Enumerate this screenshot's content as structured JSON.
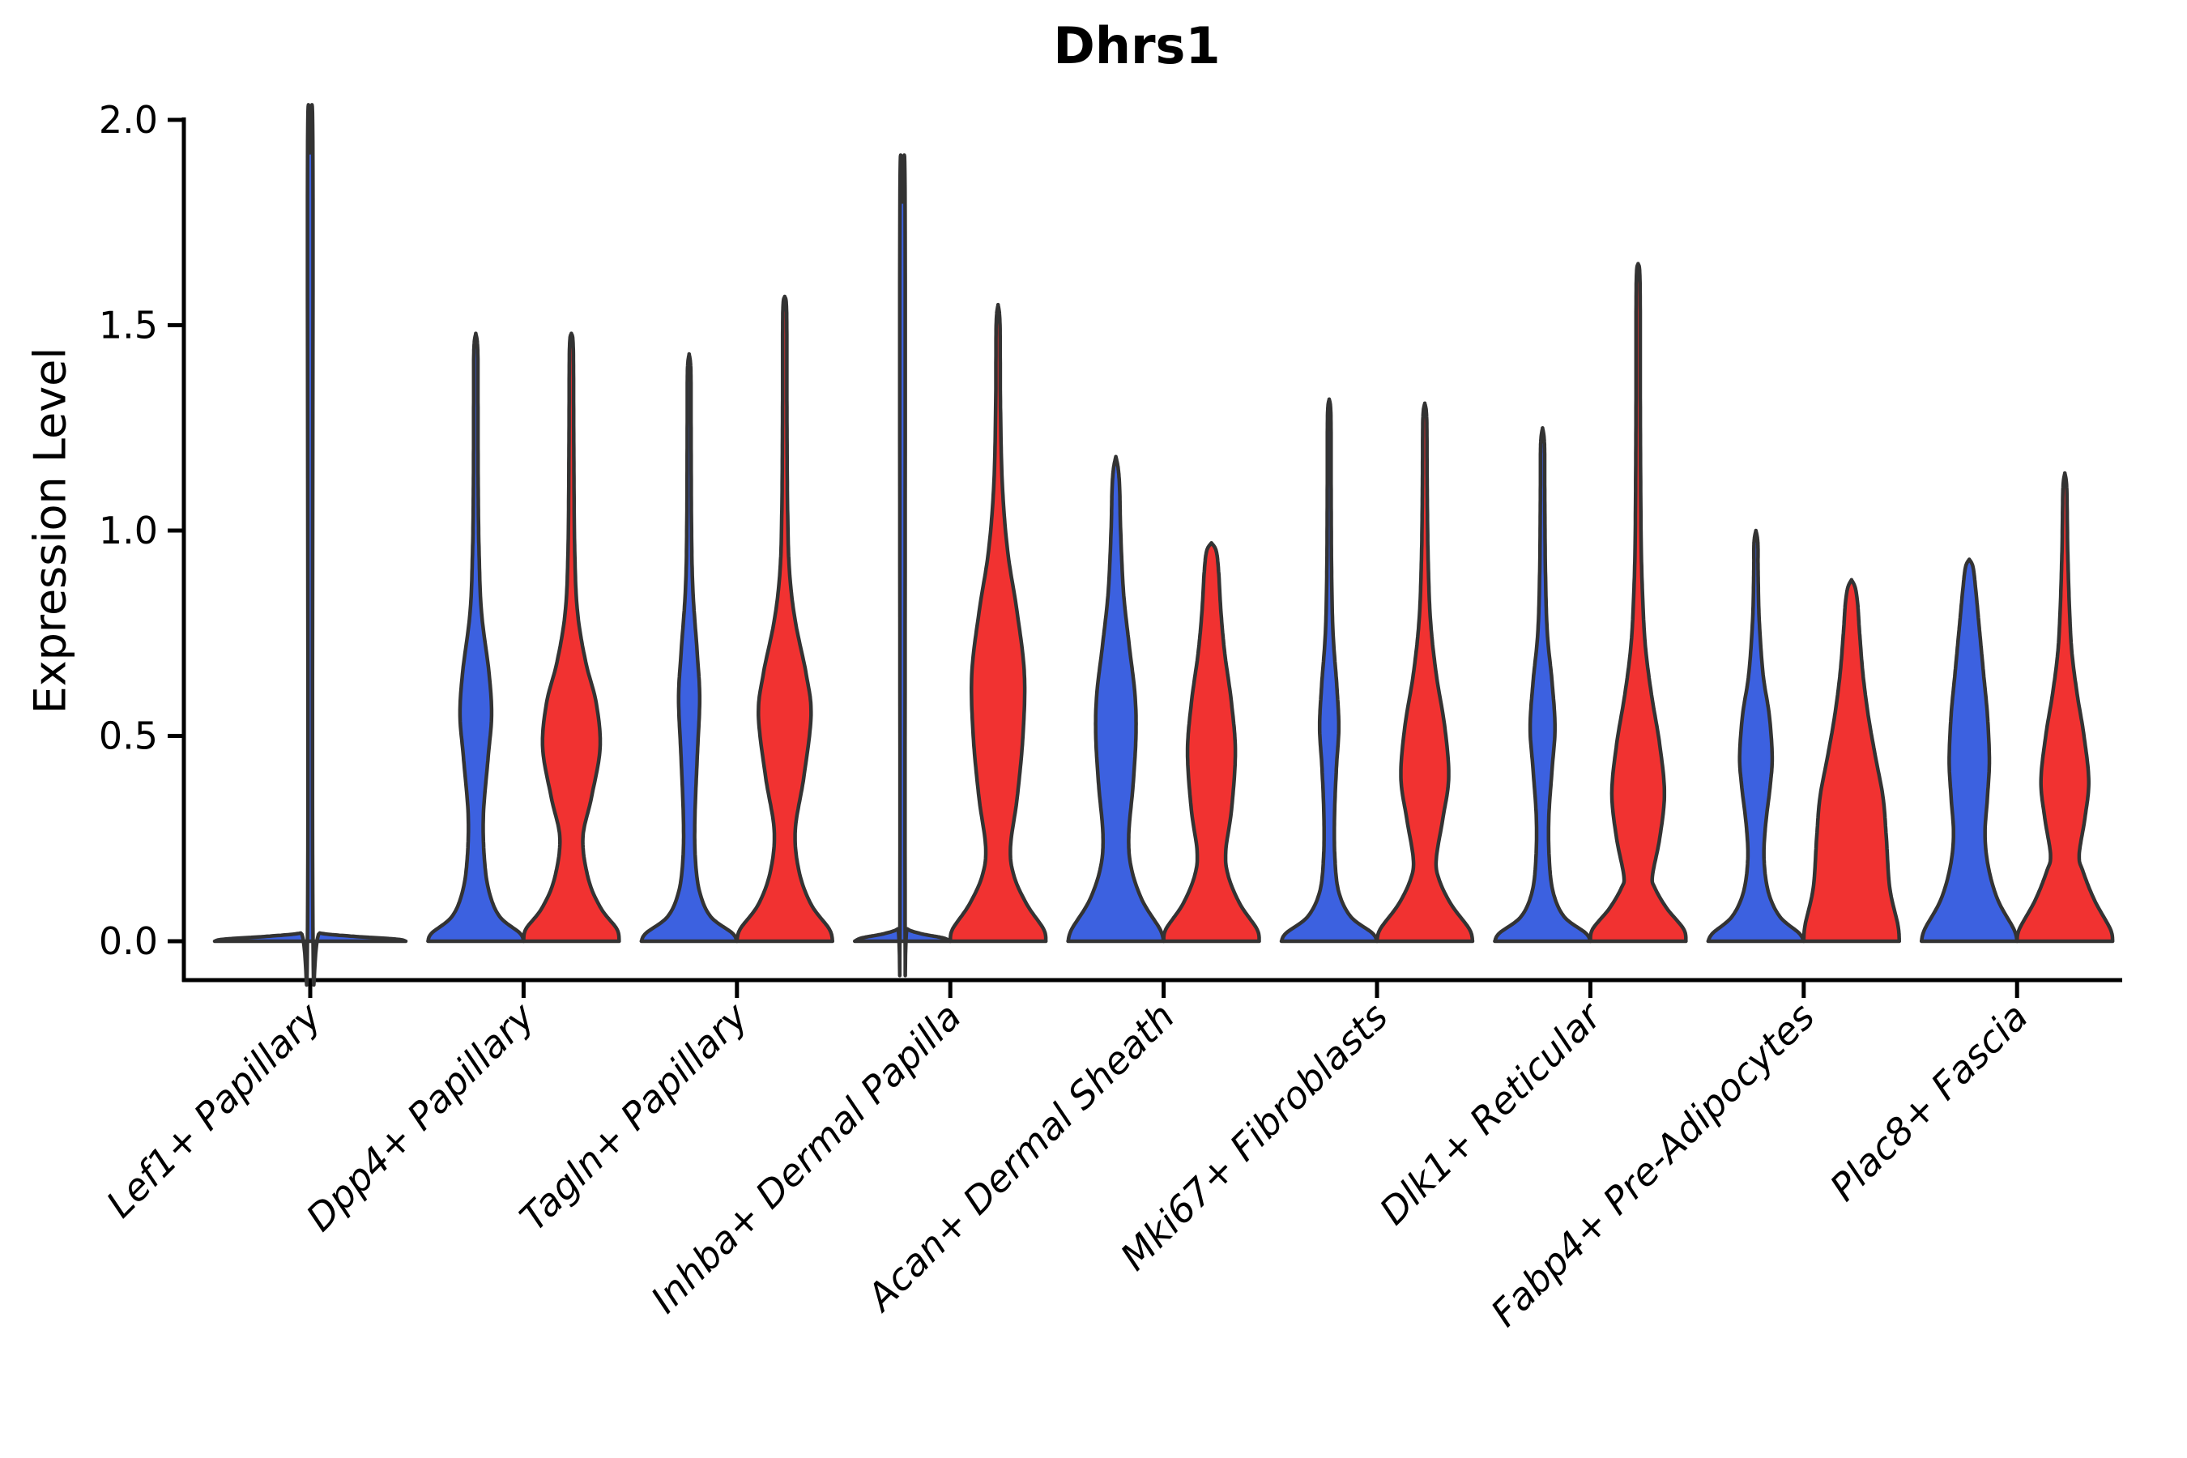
{
  "chart_data": {
    "type": "violin",
    "title": "Dhrs1",
    "ylabel": "Expression Level",
    "ylim": [
      -0.095,
      2.0
    ],
    "grid": false,
    "legend": "none",
    "ytick_values": [
      0.0,
      0.5,
      1.0,
      1.5,
      2.0
    ],
    "ytick_labels": [
      "0.0",
      "0.5",
      "1.0",
      "1.5",
      "2.0"
    ],
    "categories": [
      "Lef1+ Papillary",
      "Dpp4+ Papillary",
      "Tagln+ Papillary",
      "Inhba+ Dermal Papilla",
      "Acan+ Dermal Sheath",
      "Mki67+ Fibroblasts",
      "Dlk1+ Reticular",
      "Fabp4+ Pre-Adipocytes",
      "Plac8+ Fascia"
    ],
    "colors": {
      "blue": "#3C61E0",
      "red": "#F13231"
    },
    "stroke_color": "#333333",
    "violins": [
      {
        "category": 0,
        "side": "full",
        "color": "blue",
        "max": 1.92,
        "profile": [
          [
            0,
            1.0
          ],
          [
            0.005,
            0.9
          ],
          [
            0.012,
            0.45
          ],
          [
            0.02,
            0.1
          ],
          [
            0.035,
            0.028
          ],
          [
            1.89,
            0.028
          ],
          [
            1.92,
            0
          ]
        ]
      },
      {
        "category": 1,
        "side": "left",
        "color": "blue",
        "max": 1.48,
        "profile": [
          [
            0,
            1.0
          ],
          [
            0.02,
            0.92
          ],
          [
            0.06,
            0.5
          ],
          [
            0.12,
            0.28
          ],
          [
            0.2,
            0.18
          ],
          [
            0.31,
            0.16
          ],
          [
            0.45,
            0.26
          ],
          [
            0.55,
            0.33
          ],
          [
            0.65,
            0.28
          ],
          [
            0.8,
            0.12
          ],
          [
            0.94,
            0.07
          ],
          [
            1.1,
            0.05
          ],
          [
            1.3,
            0.045
          ],
          [
            1.44,
            0.04
          ],
          [
            1.48,
            0
          ]
        ]
      },
      {
        "category": 1,
        "side": "right",
        "color": "red",
        "max": 1.48,
        "profile": [
          [
            0,
            1.0
          ],
          [
            0.03,
            0.95
          ],
          [
            0.08,
            0.62
          ],
          [
            0.15,
            0.36
          ],
          [
            0.25,
            0.24
          ],
          [
            0.35,
            0.42
          ],
          [
            0.47,
            0.6
          ],
          [
            0.58,
            0.52
          ],
          [
            0.68,
            0.3
          ],
          [
            0.8,
            0.13
          ],
          [
            0.95,
            0.07
          ],
          [
            1.2,
            0.05
          ],
          [
            1.44,
            0.04
          ],
          [
            1.48,
            0
          ]
        ]
      },
      {
        "category": 2,
        "side": "left",
        "color": "blue",
        "max": 1.43,
        "profile": [
          [
            0,
            1.0
          ],
          [
            0.02,
            0.9
          ],
          [
            0.06,
            0.45
          ],
          [
            0.12,
            0.22
          ],
          [
            0.2,
            0.13
          ],
          [
            0.3,
            0.12
          ],
          [
            0.45,
            0.17
          ],
          [
            0.59,
            0.22
          ],
          [
            0.7,
            0.17
          ],
          [
            0.85,
            0.08
          ],
          [
            1.0,
            0.05
          ],
          [
            1.25,
            0.04
          ],
          [
            1.39,
            0.035
          ],
          [
            1.43,
            0
          ]
        ]
      },
      {
        "category": 2,
        "side": "right",
        "color": "red",
        "max": 1.57,
        "profile": [
          [
            0,
            1.0
          ],
          [
            0.03,
            0.93
          ],
          [
            0.09,
            0.55
          ],
          [
            0.17,
            0.3
          ],
          [
            0.27,
            0.22
          ],
          [
            0.4,
            0.4
          ],
          [
            0.55,
            0.55
          ],
          [
            0.65,
            0.45
          ],
          [
            0.78,
            0.22
          ],
          [
            0.9,
            0.1
          ],
          [
            1.05,
            0.06
          ],
          [
            1.3,
            0.045
          ],
          [
            1.53,
            0.04
          ],
          [
            1.57,
            0
          ]
        ]
      },
      {
        "category": 3,
        "side": "left",
        "color": "blue",
        "max": 1.8,
        "profile": [
          [
            0,
            1.0
          ],
          [
            0.008,
            0.85
          ],
          [
            0.018,
            0.4
          ],
          [
            0.03,
            0.1
          ],
          [
            0.05,
            0.055
          ],
          [
            1.78,
            0.055
          ],
          [
            1.8,
            0
          ]
        ]
      },
      {
        "category": 3,
        "side": "right",
        "color": "red",
        "max": 1.55,
        "profile": [
          [
            0,
            1.0
          ],
          [
            0.03,
            0.95
          ],
          [
            0.09,
            0.6
          ],
          [
            0.16,
            0.33
          ],
          [
            0.23,
            0.26
          ],
          [
            0.35,
            0.4
          ],
          [
            0.5,
            0.52
          ],
          [
            0.65,
            0.55
          ],
          [
            0.8,
            0.4
          ],
          [
            0.95,
            0.2
          ],
          [
            1.11,
            0.09
          ],
          [
            1.3,
            0.05
          ],
          [
            1.5,
            0.04
          ],
          [
            1.55,
            0
          ]
        ]
      },
      {
        "category": 4,
        "side": "left",
        "color": "blue",
        "max": 1.18,
        "profile": [
          [
            0,
            1.0
          ],
          [
            0.03,
            0.92
          ],
          [
            0.1,
            0.55
          ],
          [
            0.18,
            0.32
          ],
          [
            0.26,
            0.27
          ],
          [
            0.38,
            0.36
          ],
          [
            0.5,
            0.42
          ],
          [
            0.6,
            0.4
          ],
          [
            0.72,
            0.28
          ],
          [
            0.85,
            0.16
          ],
          [
            1.0,
            0.1
          ],
          [
            1.1,
            0.08
          ],
          [
            1.15,
            0.05
          ],
          [
            1.18,
            0
          ]
        ]
      },
      {
        "category": 4,
        "side": "right",
        "color": "red",
        "max": 0.97,
        "profile": [
          [
            0,
            1.0
          ],
          [
            0.03,
            0.95
          ],
          [
            0.09,
            0.6
          ],
          [
            0.16,
            0.35
          ],
          [
            0.22,
            0.3
          ],
          [
            0.32,
            0.42
          ],
          [
            0.46,
            0.5
          ],
          [
            0.58,
            0.42
          ],
          [
            0.7,
            0.28
          ],
          [
            0.8,
            0.2
          ],
          [
            0.9,
            0.15
          ],
          [
            0.95,
            0.1
          ],
          [
            0.97,
            0
          ]
        ]
      },
      {
        "category": 5,
        "side": "left",
        "color": "blue",
        "max": 1.32,
        "profile": [
          [
            0,
            1.0
          ],
          [
            0.02,
            0.9
          ],
          [
            0.06,
            0.45
          ],
          [
            0.12,
            0.2
          ],
          [
            0.2,
            0.12
          ],
          [
            0.3,
            0.11
          ],
          [
            0.42,
            0.15
          ],
          [
            0.52,
            0.2
          ],
          [
            0.62,
            0.16
          ],
          [
            0.75,
            0.08
          ],
          [
            0.9,
            0.05
          ],
          [
            1.1,
            0.04
          ],
          [
            1.28,
            0.035
          ],
          [
            1.32,
            0
          ]
        ]
      },
      {
        "category": 5,
        "side": "right",
        "color": "red",
        "max": 1.31,
        "profile": [
          [
            0,
            1.0
          ],
          [
            0.03,
            0.93
          ],
          [
            0.09,
            0.55
          ],
          [
            0.15,
            0.3
          ],
          [
            0.2,
            0.24
          ],
          [
            0.3,
            0.38
          ],
          [
            0.4,
            0.5
          ],
          [
            0.52,
            0.42
          ],
          [
            0.65,
            0.24
          ],
          [
            0.78,
            0.12
          ],
          [
            0.93,
            0.07
          ],
          [
            1.1,
            0.05
          ],
          [
            1.27,
            0.04
          ],
          [
            1.31,
            0
          ]
        ]
      },
      {
        "category": 6,
        "side": "left",
        "color": "blue",
        "max": 1.25,
        "profile": [
          [
            0,
            1.0
          ],
          [
            0.02,
            0.9
          ],
          [
            0.06,
            0.45
          ],
          [
            0.12,
            0.22
          ],
          [
            0.2,
            0.14
          ],
          [
            0.3,
            0.13
          ],
          [
            0.42,
            0.2
          ],
          [
            0.52,
            0.26
          ],
          [
            0.63,
            0.2
          ],
          [
            0.75,
            0.1
          ],
          [
            0.9,
            0.06
          ],
          [
            1.1,
            0.045
          ],
          [
            1.21,
            0.04
          ],
          [
            1.25,
            0
          ]
        ]
      },
      {
        "category": 6,
        "side": "right",
        "color": "red",
        "max": 1.65,
        "profile": [
          [
            0,
            1.0
          ],
          [
            0.03,
            0.95
          ],
          [
            0.08,
            0.6
          ],
          [
            0.13,
            0.35
          ],
          [
            0.16,
            0.3
          ],
          [
            0.25,
            0.45
          ],
          [
            0.36,
            0.55
          ],
          [
            0.48,
            0.45
          ],
          [
            0.6,
            0.28
          ],
          [
            0.72,
            0.15
          ],
          [
            0.85,
            0.09
          ],
          [
            1.0,
            0.06
          ],
          [
            1.3,
            0.045
          ],
          [
            1.6,
            0.04
          ],
          [
            1.65,
            0
          ]
        ]
      },
      {
        "category": 7,
        "side": "left",
        "color": "blue",
        "max": 1.0,
        "profile": [
          [
            0,
            1.0
          ],
          [
            0.02,
            0.9
          ],
          [
            0.06,
            0.5
          ],
          [
            0.12,
            0.26
          ],
          [
            0.2,
            0.17
          ],
          [
            0.28,
            0.2
          ],
          [
            0.38,
            0.3
          ],
          [
            0.45,
            0.34
          ],
          [
            0.55,
            0.28
          ],
          [
            0.65,
            0.15
          ],
          [
            0.78,
            0.07
          ],
          [
            0.9,
            0.045
          ],
          [
            0.97,
            0.04
          ],
          [
            1.0,
            0
          ]
        ]
      },
      {
        "category": 7,
        "side": "right",
        "color": "red",
        "max": 0.88,
        "profile": [
          [
            0,
            1.0
          ],
          [
            0.04,
            0.97
          ],
          [
            0.13,
            0.8
          ],
          [
            0.25,
            0.73
          ],
          [
            0.35,
            0.66
          ],
          [
            0.45,
            0.5
          ],
          [
            0.55,
            0.35
          ],
          [
            0.65,
            0.24
          ],
          [
            0.75,
            0.17
          ],
          [
            0.82,
            0.13
          ],
          [
            0.86,
            0.08
          ],
          [
            0.88,
            0
          ]
        ]
      },
      {
        "category": 8,
        "side": "left",
        "color": "blue",
        "max": 0.93,
        "profile": [
          [
            0,
            1.0
          ],
          [
            0.03,
            0.93
          ],
          [
            0.1,
            0.6
          ],
          [
            0.18,
            0.4
          ],
          [
            0.26,
            0.33
          ],
          [
            0.35,
            0.38
          ],
          [
            0.44,
            0.42
          ],
          [
            0.55,
            0.38
          ],
          [
            0.65,
            0.3
          ],
          [
            0.75,
            0.22
          ],
          [
            0.85,
            0.14
          ],
          [
            0.91,
            0.08
          ],
          [
            0.93,
            0
          ]
        ]
      },
      {
        "category": 8,
        "side": "right",
        "color": "red",
        "max": 1.14,
        "profile": [
          [
            0,
            1.0
          ],
          [
            0.03,
            0.95
          ],
          [
            0.1,
            0.62
          ],
          [
            0.17,
            0.38
          ],
          [
            0.21,
            0.3
          ],
          [
            0.3,
            0.42
          ],
          [
            0.39,
            0.5
          ],
          [
            0.5,
            0.4
          ],
          [
            0.6,
            0.26
          ],
          [
            0.7,
            0.15
          ],
          [
            0.8,
            0.1
          ],
          [
            0.95,
            0.06
          ],
          [
            1.1,
            0.04
          ],
          [
            1.14,
            0
          ]
        ]
      }
    ]
  }
}
